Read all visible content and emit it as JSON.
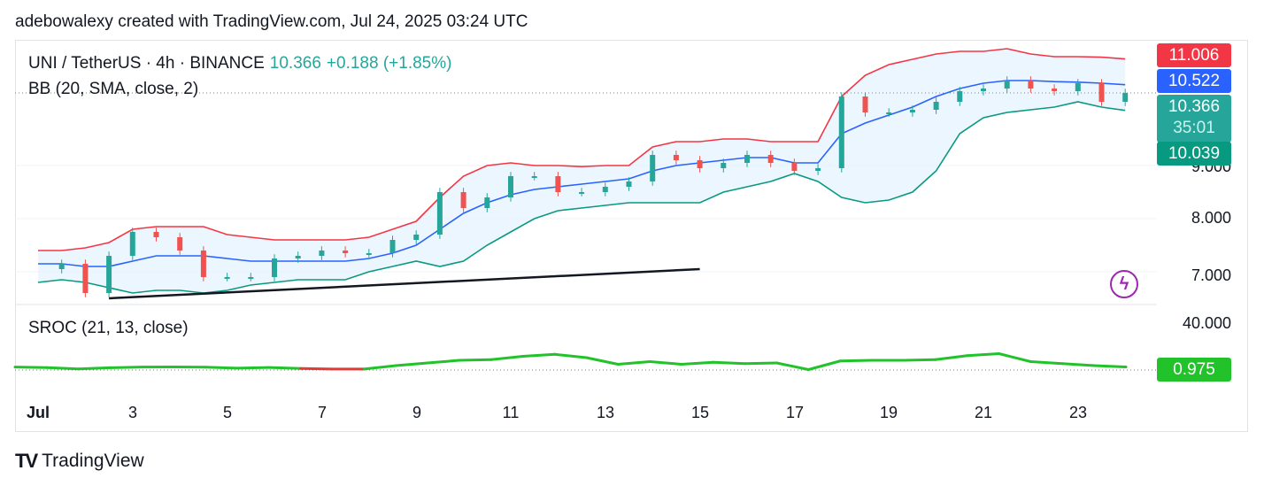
{
  "caption": "adebowalexy created with TradingView.com, Jul 24, 2025 03:24 UTC",
  "legend": {
    "symbol": "UNI / TetherUS · 4h · BINANCE",
    "price": "10.366",
    "change": "+0.188 (+1.85%)",
    "bb": "BB (20, SMA, close, 2)",
    "sroc": "SROC (21, 13, close)"
  },
  "badges": {
    "upper": "11.006",
    "basis": "10.522",
    "last": "10.366",
    "countdown": "35:01",
    "lower": "10.039",
    "sroc": "0.975"
  },
  "axis_labels": [
    "9.000",
    "8.000",
    "7.000"
  ],
  "sroc_axis_label": "40.000",
  "time_labels": [
    "Jul",
    "3",
    "5",
    "7",
    "9",
    "11",
    "13",
    "15",
    "17",
    "19",
    "21",
    "23"
  ],
  "brand": "TradingView",
  "colors": {
    "up": "#26a69a",
    "down": "#ef5350",
    "basis": "#2962ff",
    "upper": "#f23645",
    "lower": "#089981",
    "band_fill": "#e3f2fd",
    "sroc": "#22c32a",
    "sroc_neg": "#e53935",
    "trendline": "#131722"
  },
  "chart_data": {
    "type": "candlestick",
    "title": "UNI / TetherUS · 4h · BINANCE",
    "price_axis": {
      "ticks": [
        7,
        8,
        9
      ],
      "range": [
        6.5,
        11.0
      ]
    },
    "x": [
      1,
      1.5,
      2,
      2.5,
      3,
      3.5,
      4,
      4.5,
      5,
      5.5,
      6,
      6.5,
      7,
      7.5,
      8,
      8.5,
      9,
      9.5,
      10,
      10.5,
      11,
      11.5,
      12,
      12.5,
      13,
      13.5,
      14,
      14.5,
      15,
      15.5,
      16,
      16.5,
      17,
      17.5,
      18,
      18.5,
      19,
      19.5,
      20,
      20.5,
      21,
      21.5,
      22,
      22.5,
      23,
      23.5,
      24
    ],
    "close": [
      7.05,
      7.15,
      6.6,
      7.3,
      7.75,
      7.65,
      7.4,
      6.9,
      6.9,
      6.9,
      7.25,
      7.3,
      7.4,
      7.35,
      7.35,
      7.6,
      7.7,
      8.5,
      8.2,
      8.4,
      8.8,
      8.8,
      8.5,
      8.5,
      8.6,
      8.7,
      9.2,
      9.1,
      8.95,
      9.05,
      9.2,
      9.05,
      8.9,
      8.95,
      10.3,
      10.0,
      10.0,
      10.05,
      10.2,
      10.4,
      10.45,
      10.6,
      10.45,
      10.4,
      10.55,
      10.2,
      10.366
    ],
    "bb_upper": [
      7.4,
      7.4,
      7.45,
      7.55,
      7.8,
      7.85,
      7.85,
      7.85,
      7.7,
      7.65,
      7.6,
      7.6,
      7.6,
      7.6,
      7.65,
      7.8,
      7.95,
      8.4,
      8.8,
      9.0,
      9.05,
      9.0,
      9.0,
      8.98,
      9.0,
      9.0,
      9.35,
      9.45,
      9.45,
      9.5,
      9.5,
      9.45,
      9.45,
      9.45,
      10.3,
      10.7,
      10.9,
      11.0,
      11.1,
      11.15,
      11.15,
      11.2,
      11.1,
      11.05,
      11.05,
      11.04,
      11.006
    ],
    "bb_basis": [
      7.15,
      7.15,
      7.1,
      7.1,
      7.2,
      7.3,
      7.3,
      7.3,
      7.25,
      7.2,
      7.2,
      7.2,
      7.2,
      7.2,
      7.25,
      7.35,
      7.5,
      7.8,
      8.1,
      8.3,
      8.45,
      8.55,
      8.6,
      8.65,
      8.7,
      8.75,
      8.9,
      9.0,
      9.05,
      9.1,
      9.15,
      9.15,
      9.05,
      9.05,
      9.6,
      9.8,
      9.95,
      10.1,
      10.3,
      10.45,
      10.55,
      10.6,
      10.6,
      10.58,
      10.57,
      10.55,
      10.522
    ],
    "bb_lower": [
      6.8,
      6.85,
      6.8,
      6.7,
      6.6,
      6.65,
      6.65,
      6.6,
      6.65,
      6.75,
      6.8,
      6.85,
      6.85,
      6.85,
      7.0,
      7.1,
      7.2,
      7.1,
      7.2,
      7.5,
      7.75,
      8.0,
      8.15,
      8.2,
      8.25,
      8.3,
      8.3,
      8.3,
      8.3,
      8.5,
      8.6,
      8.7,
      8.85,
      8.7,
      8.4,
      8.3,
      8.35,
      8.5,
      8.9,
      9.6,
      9.9,
      10.0,
      10.05,
      10.1,
      10.2,
      10.1,
      10.039
    ],
    "trendline": [
      [
        2.5,
        6.5
      ],
      [
        15,
        7.05
      ]
    ],
    "sroc": {
      "name": "SROC (21, 13, close)",
      "values": [
        0.9,
        0.5,
        -0.5,
        0.4,
        0.9,
        1.0,
        0.8,
        0.1,
        0.6,
        -0.2,
        -0.6,
        -0.6,
        2.0,
        4.0,
        6.0,
        6.5,
        9.0,
        10.5,
        8.0,
        3.0,
        5.0,
        3.0,
        4.5,
        3.5,
        4.0,
        -1.0,
        5.5,
        6.0,
        6.0,
        6.5,
        9.5,
        11.0,
        5.0,
        3.5,
        2.0,
        0.975
      ]
    }
  }
}
